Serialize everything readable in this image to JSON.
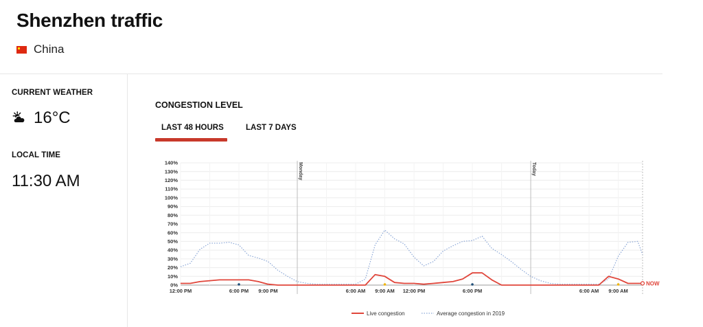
{
  "page": {
    "title": "Shenzhen traffic",
    "country": "China"
  },
  "sidebar": {
    "weather_label": "CURRENT WEATHER",
    "weather_icon": "partly-cloudy-icon",
    "temperature": "16°C",
    "time_label": "LOCAL TIME",
    "local_time": "11:30 AM"
  },
  "congestion": {
    "title": "CONGESTION LEVEL",
    "tabs": [
      {
        "label": "LAST 48 HOURS",
        "active": true
      },
      {
        "label": "LAST 7 DAYS",
        "active": false
      }
    ]
  },
  "chart_data": {
    "type": "line",
    "y_tick_labels": [
      "0%",
      "10%",
      "20%",
      "30%",
      "40%",
      "50%",
      "60%",
      "70%",
      "80%",
      "90%",
      "100%",
      "110%",
      "120%",
      "130%",
      "140%"
    ],
    "ylim": [
      0,
      140
    ],
    "x_tick_labels": [
      "12:00 PM",
      "6:00 PM",
      "9:00 PM",
      "6:00 AM",
      "9:00 AM",
      "12:00 PM",
      "6:00 PM",
      "6:00 AM",
      "9:00 AM"
    ],
    "x_tick_hours": [
      0,
      6,
      9,
      18,
      21,
      24,
      30,
      42,
      45
    ],
    "day_markers": [
      {
        "label": "Monday",
        "hour": 12
      },
      {
        "label": "Today",
        "hour": 36
      }
    ],
    "now_label": "NOW",
    "now_hour": 47.5,
    "markers": [
      {
        "hour": 6,
        "color": "#1f4e79"
      },
      {
        "hour": 21,
        "color": "#f0b400"
      },
      {
        "hour": 30,
        "color": "#1f4e79"
      },
      {
        "hour": 45,
        "color": "#f0b400"
      }
    ],
    "series": [
      {
        "name": "Live congestion",
        "color": "#e0453a",
        "style": "solid",
        "points": [
          [
            0,
            2
          ],
          [
            1,
            2
          ],
          [
            2,
            4
          ],
          [
            3,
            5
          ],
          [
            4,
            6
          ],
          [
            5,
            6
          ],
          [
            6,
            6
          ],
          [
            7,
            6
          ],
          [
            8,
            4
          ],
          [
            9,
            1
          ],
          [
            10,
            0
          ],
          [
            11,
            0
          ],
          [
            12,
            0
          ],
          [
            13,
            0
          ],
          [
            14,
            0
          ],
          [
            15,
            0
          ],
          [
            16,
            0
          ],
          [
            17,
            0
          ],
          [
            18,
            0
          ],
          [
            19,
            0
          ],
          [
            20,
            12
          ],
          [
            21,
            10
          ],
          [
            22,
            3
          ],
          [
            23,
            2
          ],
          [
            24,
            2
          ],
          [
            25,
            1
          ],
          [
            26,
            2
          ],
          [
            27,
            3
          ],
          [
            28,
            4
          ],
          [
            29,
            7
          ],
          [
            30,
            14
          ],
          [
            31,
            14
          ],
          [
            32,
            6
          ],
          [
            33,
            0
          ],
          [
            34,
            0
          ],
          [
            35,
            0
          ],
          [
            36,
            0
          ],
          [
            37,
            0
          ],
          [
            38,
            0
          ],
          [
            39,
            0
          ],
          [
            40,
            0
          ],
          [
            41,
            0
          ],
          [
            42,
            0
          ],
          [
            43,
            0
          ],
          [
            44,
            10
          ],
          [
            45,
            7
          ],
          [
            46,
            2
          ],
          [
            47,
            2
          ],
          [
            47.5,
            2
          ]
        ]
      },
      {
        "name": "Average congestion in 2019",
        "color": "#8aa6d6",
        "style": "dotted",
        "points": [
          [
            0,
            21
          ],
          [
            1,
            25
          ],
          [
            2,
            41
          ],
          [
            3,
            48
          ],
          [
            4,
            48
          ],
          [
            5,
            49
          ],
          [
            6,
            46
          ],
          [
            7,
            34
          ],
          [
            8,
            31
          ],
          [
            9,
            27
          ],
          [
            10,
            17
          ],
          [
            11,
            10
          ],
          [
            12,
            4
          ],
          [
            13,
            2
          ],
          [
            14,
            1
          ],
          [
            15,
            1
          ],
          [
            16,
            1
          ],
          [
            17,
            1
          ],
          [
            18,
            1
          ],
          [
            19,
            7
          ],
          [
            20,
            46
          ],
          [
            21,
            63
          ],
          [
            22,
            53
          ],
          [
            23,
            47
          ],
          [
            24,
            32
          ],
          [
            25,
            22
          ],
          [
            26,
            27
          ],
          [
            27,
            39
          ],
          [
            28,
            45
          ],
          [
            29,
            50
          ],
          [
            30,
            51
          ],
          [
            31,
            56
          ],
          [
            32,
            42
          ],
          [
            33,
            35
          ],
          [
            34,
            27
          ],
          [
            35,
            18
          ],
          [
            36,
            10
          ],
          [
            37,
            5
          ],
          [
            38,
            2
          ],
          [
            39,
            1
          ],
          [
            40,
            1
          ],
          [
            41,
            1
          ],
          [
            42,
            1
          ],
          [
            43,
            1
          ],
          [
            44,
            7
          ],
          [
            45,
            33
          ],
          [
            46,
            49
          ],
          [
            47,
            50
          ],
          [
            47.5,
            35
          ]
        ]
      }
    ],
    "legend_position": "bottom-center",
    "grid": true
  }
}
